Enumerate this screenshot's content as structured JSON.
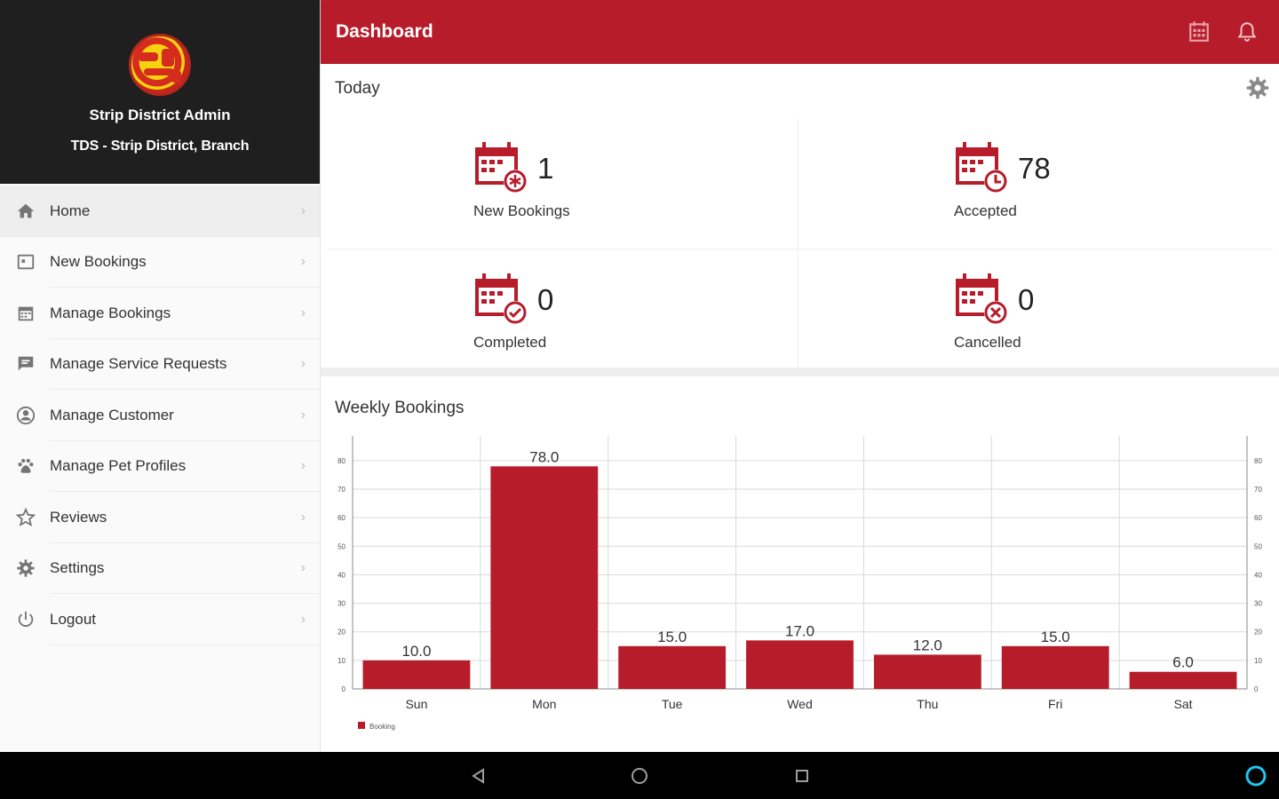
{
  "sidebar": {
    "admin_name": "Strip District Admin",
    "branch": "TDS - Strip District, Branch",
    "items": [
      {
        "label": "Home",
        "icon": "home-icon"
      },
      {
        "label": "New Bookings",
        "icon": "calendar-plus-icon"
      },
      {
        "label": "Manage Bookings",
        "icon": "calendar-icon"
      },
      {
        "label": "Manage Service Requests",
        "icon": "flag-icon"
      },
      {
        "label": "Manage Customer",
        "icon": "account-circle-icon"
      },
      {
        "label": "Manage Pet Profiles",
        "icon": "paw-icon"
      },
      {
        "label": "Reviews",
        "icon": "star-icon"
      },
      {
        "label": "Settings",
        "icon": "gear-icon"
      },
      {
        "label": "Logout",
        "icon": "power-icon"
      }
    ],
    "chevron": "›"
  },
  "header": {
    "title": "Dashboard",
    "icons": [
      "calendar-grid-icon",
      "bell-icon"
    ]
  },
  "today": {
    "title": "Today",
    "stats": [
      {
        "label": "New Bookings",
        "value": "1",
        "icon": "calendar-new-icon"
      },
      {
        "label": "Accepted",
        "value": "78",
        "icon": "calendar-clock-icon"
      },
      {
        "label": "Completed",
        "value": "0",
        "icon": "calendar-check-icon"
      },
      {
        "label": "Cancelled",
        "value": "0",
        "icon": "calendar-cancel-icon"
      }
    ]
  },
  "weekly": {
    "title": "Weekly Bookings"
  },
  "colors": {
    "accent": "#b71c2b",
    "sidebar_header": "#1f1f1f",
    "sysbar": "#000000",
    "assistant": "#1ec8f0"
  },
  "chart_data": {
    "type": "bar",
    "categories": [
      "Sun",
      "Mon",
      "Tue",
      "Wed",
      "Thu",
      "Fri",
      "Sat"
    ],
    "series": [
      {
        "name": "Booking",
        "values": [
          10.0,
          78.0,
          15.0,
          17.0,
          12.0,
          15.0,
          6.0
        ]
      }
    ],
    "data_labels": [
      "10.0",
      "78.0",
      "15.0",
      "17.0",
      "12.0",
      "15.0",
      "6.0"
    ],
    "yticks": [
      0,
      10,
      20,
      30,
      40,
      50,
      60,
      70,
      80
    ],
    "ylim": [
      0,
      84
    ],
    "y_axis_both_sides": true,
    "grid": true,
    "legend": "bottom-left",
    "color": "#b71c2b"
  }
}
